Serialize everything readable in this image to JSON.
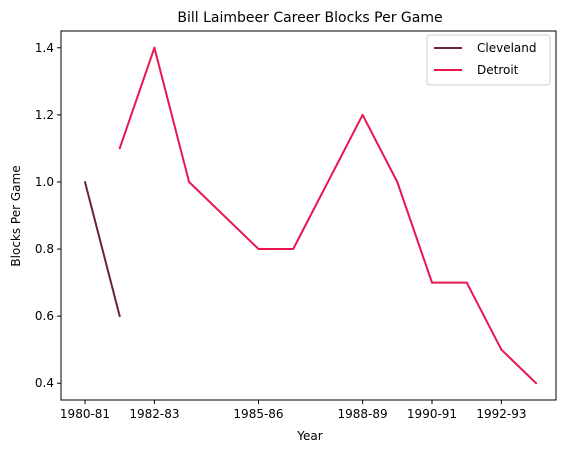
{
  "chart_data": {
    "type": "line",
    "title": "Bill Laimbeer Career Blocks Per Game",
    "xlabel": "Year",
    "ylabel": "Blocks Per Game",
    "x_tick_labels": [
      "1980-81",
      "1982-83",
      "1985-86",
      "1988-89",
      "1990-91",
      "1992-93"
    ],
    "y_tick_labels": [
      "0.4",
      "0.6",
      "0.8",
      "1.0",
      "1.2",
      "1.4"
    ],
    "ylim": [
      0.35,
      1.45
    ],
    "grid": false,
    "legend": "top-right",
    "series": [
      {
        "name": "Cleveland",
        "color": "#6b2242",
        "points": [
          {
            "x": "1980-81",
            "y": 1.0
          },
          {
            "x": "1981-82",
            "y": 0.6
          }
        ]
      },
      {
        "name": "Detroit",
        "color": "#e8174f",
        "points": [
          {
            "x": "1981-82",
            "y": 1.1
          },
          {
            "x": "1982-83",
            "y": 1.4
          },
          {
            "x": "1983-84",
            "y": 1.0
          },
          {
            "x": "1985-86",
            "y": 0.8
          },
          {
            "x": "1986-87",
            "y": 0.8
          },
          {
            "x": "1988-89",
            "y": 1.2
          },
          {
            "x": "1989-90",
            "y": 1.0
          },
          {
            "x": "1990-91",
            "y": 0.7
          },
          {
            "x": "1991-92",
            "y": 0.7
          },
          {
            "x": "1992-93",
            "y": 0.5
          },
          {
            "x": "1993-94",
            "y": 0.4
          }
        ]
      }
    ]
  }
}
